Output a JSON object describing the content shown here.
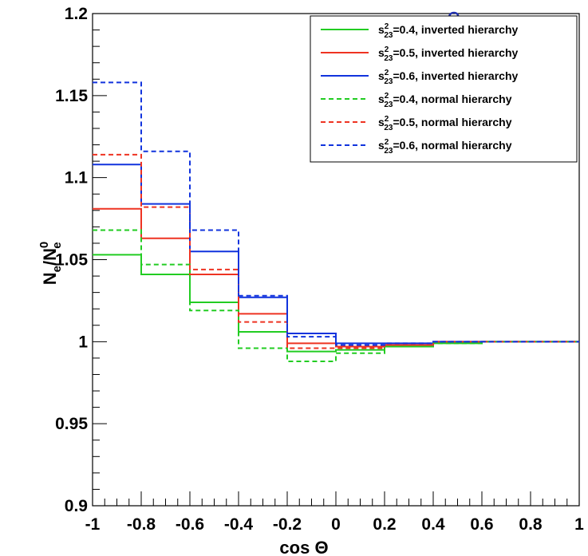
{
  "chart_data": {
    "type": "line",
    "drawstyle": "step",
    "xlabel": "cos Θ",
    "ylabel_main": "N",
    "ylabel_sub": "e",
    "ylabel_sep": "/N",
    "ylabel_sub2": "e",
    "ylabel_sup2": "0",
    "xlim": [
      -1,
      1
    ],
    "ylim": [
      0.9,
      1.2
    ],
    "x_ticks": [
      "-1",
      "-0.8",
      "-0.6",
      "-0.4",
      "-0.2",
      "0",
      "0.2",
      "0.4",
      "0.6",
      "0.8",
      "1"
    ],
    "y_ticks": [
      "0.9",
      "0.95",
      "1",
      "1.05",
      "1.1",
      "1.15",
      "1.2"
    ],
    "bin_edges": [
      -1,
      -0.8,
      -0.6,
      -0.4,
      -0.2,
      0,
      0.2,
      0.4,
      0.6,
      0.8,
      1
    ],
    "legend_position": "top-right",
    "grid": false,
    "stray_text": "e",
    "series": [
      {
        "label_pre": "s",
        "label_sup": "2",
        "label_sub": "23",
        "label_post": "=0.4, inverted hierarchy",
        "color": "#22cc22",
        "dash": "solid",
        "values": [
          1.053,
          1.041,
          1.024,
          1.006,
          0.994,
          0.995,
          0.997,
          0.999,
          1.0,
          1.0
        ]
      },
      {
        "label_pre": "s",
        "label_sup": "2",
        "label_sub": "23",
        "label_post": "=0.5, inverted hierarchy",
        "color": "#ee3322",
        "dash": "solid",
        "values": [
          1.081,
          1.063,
          1.041,
          1.017,
          0.999,
          0.997,
          0.998,
          1.0,
          1.0,
          1.0
        ]
      },
      {
        "label_pre": "s",
        "label_sup": "2",
        "label_sub": "23",
        "label_post": "=0.6, inverted hierarchy",
        "color": "#1133dd",
        "dash": "solid",
        "values": [
          1.108,
          1.084,
          1.055,
          1.027,
          1.005,
          0.999,
          0.999,
          1.0,
          1.0,
          1.0
        ]
      },
      {
        "label_pre": "s",
        "label_sup": "2",
        "label_sub": "23",
        "label_post": "=0.4, normal hierarchy",
        "color": "#22cc22",
        "dash": "dashed",
        "values": [
          1.068,
          1.047,
          1.019,
          0.996,
          0.988,
          0.993,
          0.997,
          0.999,
          1.0,
          1.0
        ]
      },
      {
        "label_pre": "s",
        "label_sup": "2",
        "label_sub": "23",
        "label_post": "=0.5, normal hierarchy",
        "color": "#ee3322",
        "dash": "dashed",
        "values": [
          1.114,
          1.082,
          1.044,
          1.012,
          0.996,
          0.996,
          0.998,
          1.0,
          1.0,
          1.0
        ]
      },
      {
        "label_pre": "s",
        "label_sup": "2",
        "label_sub": "23",
        "label_post": "=0.6, normal hierarchy",
        "color": "#1133dd",
        "dash": "dashed",
        "values": [
          1.158,
          1.116,
          1.068,
          1.028,
          1.003,
          0.998,
          0.999,
          1.0,
          1.0,
          1.0
        ]
      }
    ]
  }
}
